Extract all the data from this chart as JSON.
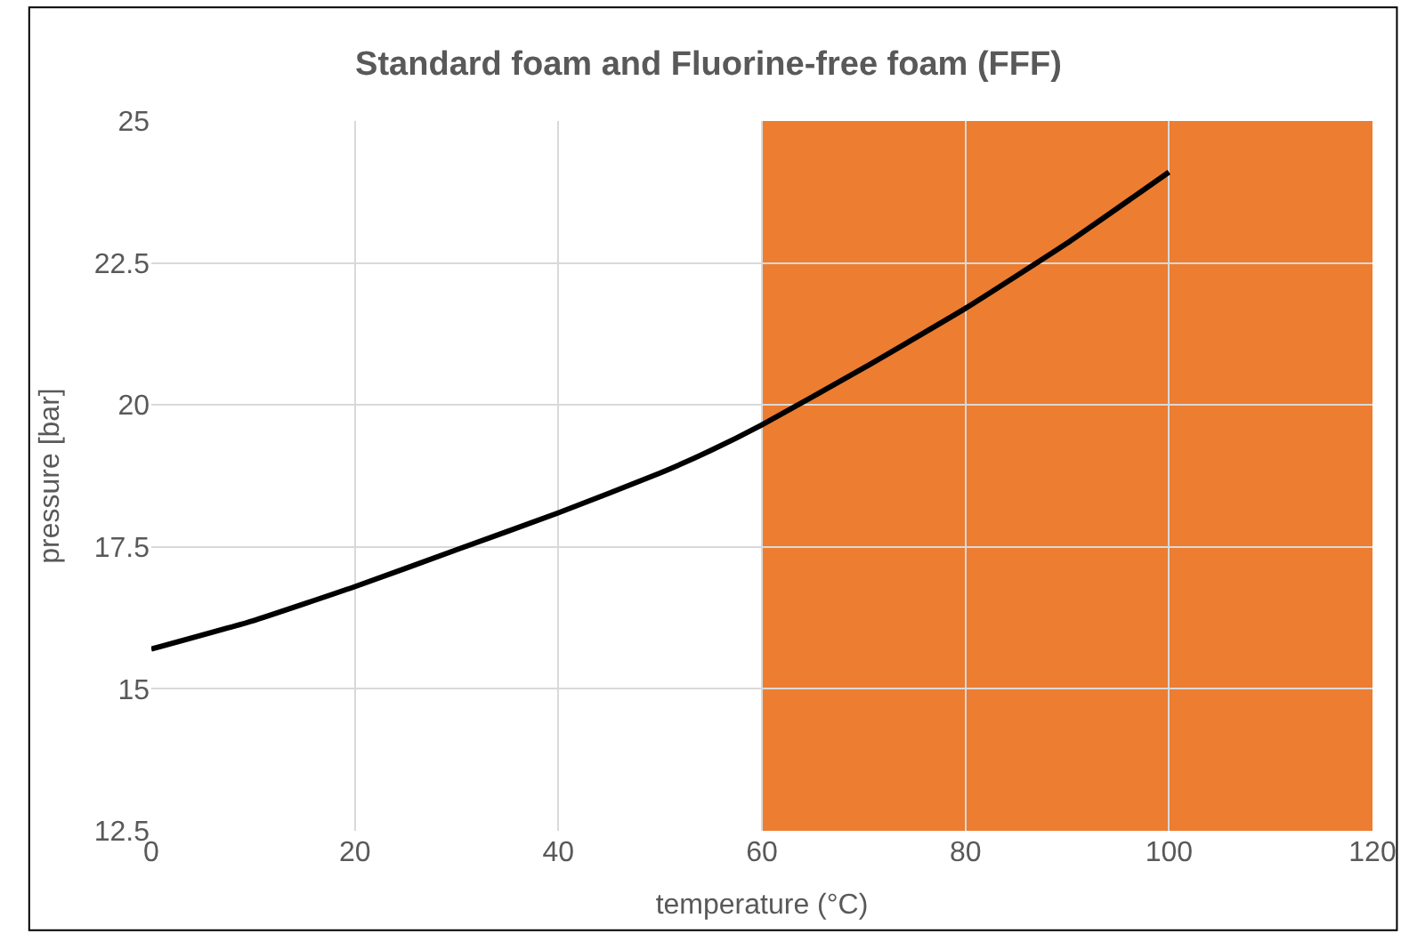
{
  "chart_data": {
    "type": "line",
    "title": "Standard foam and Fluorine-free foam (FFF)",
    "xlabel": "temperature (°C)",
    "ylabel": "pressure [bar]",
    "x": [
      0,
      10,
      20,
      30,
      40,
      50,
      55,
      60,
      70,
      80,
      90,
      100
    ],
    "series": [
      {
        "color": "#000000",
        "values": [
          15.7,
          16.2,
          16.8,
          17.45,
          18.1,
          18.8,
          19.2,
          19.65,
          20.65,
          21.7,
          22.85,
          24.1
        ]
      }
    ],
    "xlim": [
      0,
      120
    ],
    "xticks": [
      0,
      20,
      40,
      60,
      80,
      100,
      120
    ],
    "ylim": [
      12.5,
      25
    ],
    "yticks": [
      12.5,
      15,
      17.5,
      20,
      22.5,
      25
    ],
    "bands": [
      {
        "axis": "x",
        "from": 60,
        "to": 120,
        "color": "#ed7d31"
      }
    ],
    "grid": true,
    "marker": "none",
    "line_style": "solid"
  }
}
